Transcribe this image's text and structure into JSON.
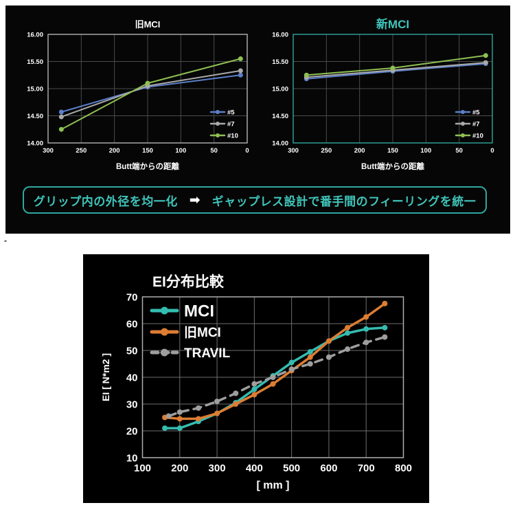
{
  "page": {
    "stray_dash": "-",
    "background": "#ffffff"
  },
  "top_panel": {
    "background": "#060606",
    "banner": {
      "left_text": "グリップ内の外径を均一化",
      "arrow": "➡",
      "right_text": "ギャップレス設計で番手間のフィーリングを統一",
      "text_color": "#3fc4ba",
      "border_color": "#2fa89e",
      "arrow_color": "#ffffff"
    }
  },
  "bottom_panel": {
    "background": "#000000"
  },
  "chart_data": [
    {
      "id": "old_mci",
      "type": "line",
      "title": "旧MCI",
      "title_color": "#ffffff",
      "xlabel": "Butt端からの距離",
      "ylabel": "",
      "xlim": [
        300,
        0
      ],
      "ylim": [
        14,
        16
      ],
      "x_axis_reversed": true,
      "grid": true,
      "legend_position": "inside-right",
      "x_ticks": [
        "300",
        "250",
        "200",
        "150",
        "100",
        "50",
        "0"
      ],
      "y_ticks": [
        "14.00",
        "14.50",
        "15.00",
        "15.50",
        "16.00"
      ],
      "border_color": "#a8a8a8",
      "grid_color": "#4b4b4b",
      "tick_color": "#ffffff",
      "series": [
        {
          "name": "#5",
          "color": "#5b7fc9",
          "points": [
            [
              280,
              14.57
            ],
            [
              150,
              15.03
            ],
            [
              10,
              15.25
            ]
          ]
        },
        {
          "name": "#7",
          "color": "#a9a9a9",
          "points": [
            [
              280,
              14.48
            ],
            [
              150,
              15.05
            ],
            [
              10,
              15.33
            ]
          ]
        },
        {
          "name": "#10",
          "color": "#8fc052",
          "points": [
            [
              280,
              14.25
            ],
            [
              150,
              15.1
            ],
            [
              10,
              15.55
            ]
          ]
        }
      ],
      "layout": {
        "plot": [
          48,
          36,
          290,
          158
        ],
        "title": [
          193,
          26,
          13
        ],
        "tick_dy": 14,
        "tick_font": 9.5,
        "xlabel_pos": [
          193,
          232,
          11.5
        ],
        "line_width": 2,
        "dot_r": 3.5,
        "legend": {
          "x1": 285,
          "x2": 305,
          "label_x": 309,
          "rows_y": [
            149,
            166,
            183
          ],
          "sizes": [
            9.5,
            9.5,
            9.5
          ],
          "lw": 2.5,
          "dot_r": 3
        }
      }
    },
    {
      "id": "new_mci",
      "type": "line",
      "title": "新MCI",
      "title_color": "#3fc4ba",
      "xlabel": "Butt端からの距離",
      "ylabel": "",
      "xlim": [
        300,
        0
      ],
      "ylim": [
        14,
        16
      ],
      "x_axis_reversed": true,
      "grid": true,
      "legend_position": "inside-right",
      "x_ticks": [
        "300",
        "250",
        "200",
        "150",
        "100",
        "50",
        "0"
      ],
      "y_ticks": [
        "14.00",
        "14.50",
        "15.00",
        "15.50",
        "16.00"
      ],
      "border_color": "#2f9c93",
      "grid_color": "#4b4b4b",
      "tick_color": "#ffffff",
      "series": [
        {
          "name": "#5",
          "color": "#5b7fc9",
          "points": [
            [
              280,
              15.18
            ],
            [
              150,
              15.32
            ],
            [
              10,
              15.46
            ]
          ]
        },
        {
          "name": "#7",
          "color": "#a9a9a9",
          "points": [
            [
              280,
              15.21
            ],
            [
              150,
              15.34
            ],
            [
              10,
              15.48
            ]
          ]
        },
        {
          "name": "#10",
          "color": "#8fc052",
          "points": [
            [
              280,
              15.25
            ],
            [
              150,
              15.38
            ],
            [
              10,
              15.61
            ]
          ]
        }
      ],
      "layout": {
        "plot": [
          48,
          36,
          290,
          158
        ],
        "title": [
          193,
          27,
          17
        ],
        "tick_dy": 14,
        "tick_font": 9.5,
        "xlabel_pos": [
          193,
          232,
          11.5
        ],
        "line_width": 2,
        "dot_r": 3.5,
        "legend": {
          "x1": 285,
          "x2": 305,
          "label_x": 309,
          "rows_y": [
            149,
            166,
            183
          ],
          "sizes": [
            9.5,
            9.5,
            9.5
          ],
          "lw": 2.5,
          "dot_r": 3
        }
      }
    },
    {
      "id": "ei",
      "type": "line",
      "title": "EI分布比較",
      "title_color": "#ffffff",
      "xlabel": "[ mm ]",
      "ylabel": "EI [ N*m2 ]",
      "xlim": [
        100,
        800
      ],
      "ylim": [
        10,
        70
      ],
      "x_axis_reversed": false,
      "grid": true,
      "legend_position": "inside-top-left",
      "x_ticks": [
        "100",
        "200",
        "300",
        "400",
        "500",
        "600",
        "700",
        "800"
      ],
      "y_ticks": [
        "10",
        "20",
        "30",
        "40",
        "50",
        "60",
        "70"
      ],
      "border_color": "#b0b0b0",
      "grid_color": "#6e6e6e",
      "tick_color": "#ffffff",
      "series": [
        {
          "name": "MCI",
          "color": "#35bcb0",
          "points": [
            [
              160,
              21
            ],
            [
              200,
              21
            ],
            [
              250,
              23.5
            ],
            [
              300,
              26.5
            ],
            [
              350,
              30.5
            ],
            [
              400,
              35.5
            ],
            [
              450,
              40.5
            ],
            [
              500,
              45.5
            ],
            [
              550,
              49.5
            ],
            [
              600,
              53.5
            ],
            [
              650,
              56.5
            ],
            [
              700,
              58
            ],
            [
              750,
              58.5
            ]
          ]
        },
        {
          "name": "旧MCI",
          "color": "#dd7d33",
          "points": [
            [
              160,
              25
            ],
            [
              200,
              24.5
            ],
            [
              250,
              24.5
            ],
            [
              300,
              26.5
            ],
            [
              350,
              30
            ],
            [
              400,
              33.5
            ],
            [
              450,
              37.5
            ],
            [
              500,
              42.5
            ],
            [
              550,
              47.5
            ],
            [
              600,
              53.5
            ],
            [
              650,
              58.5
            ],
            [
              700,
              62.5
            ],
            [
              750,
              67.5
            ]
          ]
        },
        {
          "name": "TRAVIL",
          "color": "#9e9e9e",
          "dash": "11 8",
          "legend_dash": "9 6",
          "points": [
            [
              170,
              25.5
            ],
            [
              200,
              27
            ],
            [
              250,
              28.5
            ],
            [
              300,
              31
            ],
            [
              350,
              34
            ],
            [
              400,
              37.5
            ],
            [
              450,
              40
            ],
            [
              500,
              43
            ],
            [
              550,
              45
            ],
            [
              600,
              47.5
            ],
            [
              650,
              50.5
            ],
            [
              700,
              53
            ],
            [
              750,
              55
            ]
          ]
        }
      ],
      "layout": {
        "plot": [
          86.5,
          62,
          380,
          234
        ],
        "title": [
          101,
          47,
          21
        ],
        "tick_dy": 20,
        "tick_font": 15,
        "xlabel_pos": [
          276.5,
          341,
          16
        ],
        "ylabel_pos": [
          38,
          179,
          14
        ],
        "line_width": 3.5,
        "dot_r": 4,
        "legend": {
          "x1": 100,
          "x2": 137,
          "label_x": 147,
          "rows_y": [
            82,
            113,
            143
          ],
          "sizes": [
            24,
            19,
            19
          ],
          "lw": 5,
          "dot_r": 5.5
        }
      }
    }
  ]
}
